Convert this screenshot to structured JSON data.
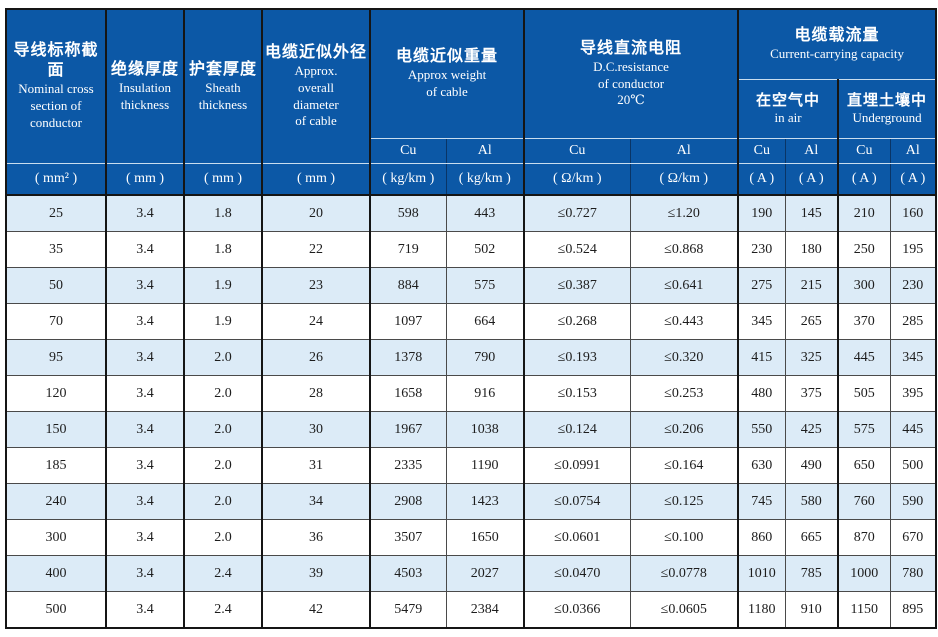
{
  "table": {
    "header": {
      "col1_zh": "导线标称截面",
      "col1_en": "Nominal cross\nsection of\nconductor",
      "col2_zh": "绝缘厚度",
      "col2_en": "Insulation\nthickness",
      "col3_zh": "护套厚度",
      "col3_en": "Sheath\nthickness",
      "col4_zh": "电缆近似外径",
      "col4_en": "Approx.\noverall\ndiameter\nof cable",
      "weight_zh": "电缆近似重量",
      "weight_en": "Approx weight\nof cable",
      "res_zh": "导线直流电阻",
      "res_en": "D.C.resistance\nof conductor\n20℃",
      "cap_zh": "电缆载流量",
      "cap_en": "Current-carrying capacity",
      "air_zh": "在空气中",
      "air_en": "in air",
      "ug_zh": "直埋土壤中",
      "ug_en": "Underground",
      "cu": "Cu",
      "al": "Al",
      "unit_mm2": "( mm² )",
      "unit_mm": "( mm )",
      "unit_kgkm": "( kg/km )",
      "unit_ohmkm": "( Ω/km )",
      "unit_a": "( A )"
    },
    "colors": {
      "header_blue": "#0c58a6",
      "row_alt_blue": "#dcebf7",
      "row_white": "#ffffff",
      "border_dark": "#151515"
    },
    "rows": [
      [
        "25",
        "3.4",
        "1.8",
        "20",
        "598",
        "443",
        "≤0.727",
        "≤1.20",
        "190",
        "145",
        "210",
        "160"
      ],
      [
        "35",
        "3.4",
        "1.8",
        "22",
        "719",
        "502",
        "≤0.524",
        "≤0.868",
        "230",
        "180",
        "250",
        "195"
      ],
      [
        "50",
        "3.4",
        "1.9",
        "23",
        "884",
        "575",
        "≤0.387",
        "≤0.641",
        "275",
        "215",
        "300",
        "230"
      ],
      [
        "70",
        "3.4",
        "1.9",
        "24",
        "1097",
        "664",
        "≤0.268",
        "≤0.443",
        "345",
        "265",
        "370",
        "285"
      ],
      [
        "95",
        "3.4",
        "2.0",
        "26",
        "1378",
        "790",
        "≤0.193",
        "≤0.320",
        "415",
        "325",
        "445",
        "345"
      ],
      [
        "120",
        "3.4",
        "2.0",
        "28",
        "1658",
        "916",
        "≤0.153",
        "≤0.253",
        "480",
        "375",
        "505",
        "395"
      ],
      [
        "150",
        "3.4",
        "2.0",
        "30",
        "1967",
        "1038",
        "≤0.124",
        "≤0.206",
        "550",
        "425",
        "575",
        "445"
      ],
      [
        "185",
        "3.4",
        "2.0",
        "31",
        "2335",
        "1190",
        "≤0.0991",
        "≤0.164",
        "630",
        "490",
        "650",
        "500"
      ],
      [
        "240",
        "3.4",
        "2.0",
        "34",
        "2908",
        "1423",
        "≤0.0754",
        "≤0.125",
        "745",
        "580",
        "760",
        "590"
      ],
      [
        "300",
        "3.4",
        "2.0",
        "36",
        "3507",
        "1650",
        "≤0.0601",
        "≤0.100",
        "860",
        "665",
        "870",
        "670"
      ],
      [
        "400",
        "3.4",
        "2.4",
        "39",
        "4503",
        "2027",
        "≤0.0470",
        "≤0.0778",
        "1010",
        "785",
        "1000",
        "780"
      ],
      [
        "500",
        "3.4",
        "2.4",
        "42",
        "5479",
        "2384",
        "≤0.0366",
        "≤0.0605",
        "1180",
        "910",
        "1150",
        "895"
      ]
    ]
  }
}
